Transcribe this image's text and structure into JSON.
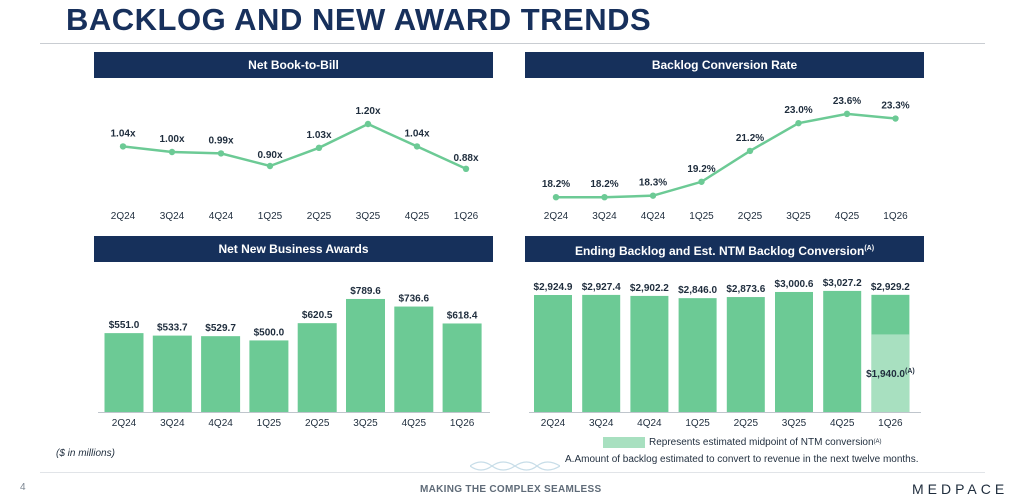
{
  "header": {
    "title": "BACKLOG AND NEW AWARD TRENDS"
  },
  "colors": {
    "navy": "#16305b",
    "green": "#6cca95",
    "light_green": "#a8e0c0"
  },
  "chart_data": [
    {
      "type": "line",
      "title": "Net Book-to-Bill",
      "categories": [
        "2Q24",
        "3Q24",
        "4Q24",
        "1Q25",
        "2Q25",
        "3Q25",
        "4Q25",
        "1Q26"
      ],
      "values": [
        1.04,
        1.0,
        0.99,
        0.9,
        1.03,
        1.2,
        1.04,
        0.88
      ],
      "labels": [
        "1.04x",
        "1.00x",
        "0.99x",
        "0.90x",
        "1.03x",
        "1.20x",
        "1.04x",
        "0.88x"
      ],
      "ylim": [
        0.7,
        1.3
      ]
    },
    {
      "type": "line",
      "title": "Backlog Conversion Rate",
      "categories": [
        "2Q24",
        "3Q24",
        "4Q24",
        "1Q25",
        "2Q25",
        "3Q25",
        "4Q25",
        "1Q26"
      ],
      "values": [
        18.2,
        18.2,
        18.3,
        19.2,
        21.2,
        23.0,
        23.6,
        23.3
      ],
      "labels": [
        "18.2%",
        "18.2%",
        "18.3%",
        "19.2%",
        "21.2%",
        "23.0%",
        "23.6%",
        "23.3%"
      ],
      "ylim": [
        17.5,
        24.5
      ]
    },
    {
      "type": "bar",
      "title": "Net New Business Awards",
      "categories": [
        "2Q24",
        "3Q24",
        "4Q24",
        "1Q25",
        "2Q25",
        "3Q25",
        "4Q25",
        "1Q26"
      ],
      "values": [
        551.0,
        533.7,
        529.7,
        500.0,
        620.5,
        789.6,
        736.6,
        618.4
      ],
      "labels": [
        "$551.0",
        "$533.7",
        "$529.7",
        "$500.0",
        "$620.5",
        "$789.6",
        "$736.6",
        "$618.4"
      ],
      "ylim": [
        0,
        950
      ]
    },
    {
      "type": "bar",
      "title": "Ending Backlog and Est. NTM Backlog Conversion",
      "title_sup": "(A)",
      "categories": [
        "2Q24",
        "3Q24",
        "4Q24",
        "1Q25",
        "2Q25",
        "3Q25",
        "4Q25",
        "1Q26"
      ],
      "values": [
        2924.9,
        2927.4,
        2902.2,
        2846.0,
        2873.6,
        3000.6,
        3027.2,
        2929.2
      ],
      "labels": [
        "$2,924.9",
        "$2,927.4",
        "$2,902.2",
        "$2,846.0",
        "$2,873.6",
        "$3,000.6",
        "$3,027.2",
        "$2,929.2"
      ],
      "overlay": {
        "index": 7,
        "value": 1940.0,
        "label": "$1,940.0",
        "label_sup": "(A)"
      },
      "ylim": [
        0,
        3400
      ]
    }
  ],
  "notes": {
    "units": "($ in millions)",
    "legend_label": "Represents estimated midpoint of NTM conversion",
    "legend_sup": "(A)",
    "footnote": "A.Amount of backlog estimated to convert to revenue in the next twelve months."
  },
  "footer": {
    "page": "4",
    "tagline": "MAKING THE COMPLEX SEAMLESS",
    "logo": "MEDPACE"
  }
}
